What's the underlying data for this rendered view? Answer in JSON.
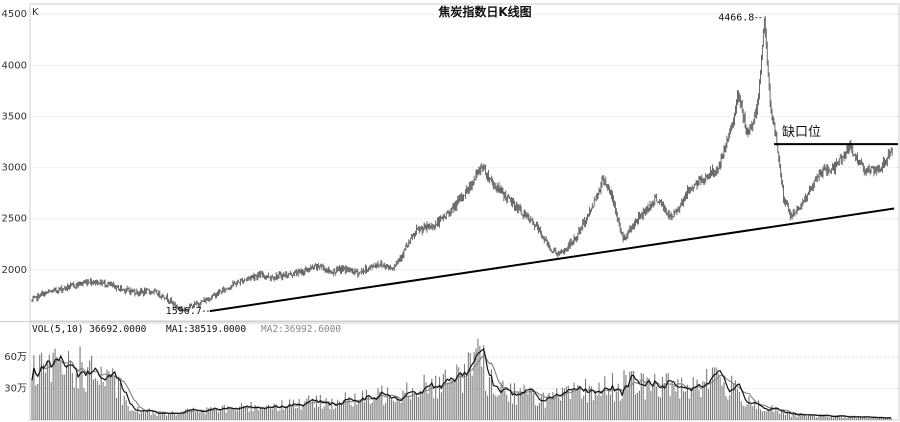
{
  "chart_data": [
    {
      "type": "candlestick",
      "title": "焦炭指数日K线图",
      "unit_label": "K",
      "ylim": [
        1500,
        4600
      ],
      "yticks": [
        "2000",
        "2500",
        "3000",
        "3500",
        "4000",
        "4500"
      ],
      "grid": true,
      "colors": {
        "price": "#555555",
        "trendline": "#000000",
        "grid": "#dddddd"
      },
      "anchors": [
        {
          "i": 0,
          "v": 1700
        },
        {
          "i": 10,
          "v": 1760
        },
        {
          "i": 25,
          "v": 1800
        },
        {
          "i": 45,
          "v": 1850
        },
        {
          "i": 60,
          "v": 1890
        },
        {
          "i": 75,
          "v": 1870
        },
        {
          "i": 90,
          "v": 1820
        },
        {
          "i": 110,
          "v": 1780
        },
        {
          "i": 125,
          "v": 1790
        },
        {
          "i": 140,
          "v": 1730
        },
        {
          "i": 150,
          "v": 1640
        },
        {
          "i": 158,
          "v": 1610
        },
        {
          "i": 165,
          "v": 1640
        },
        {
          "i": 180,
          "v": 1700
        },
        {
          "i": 195,
          "v": 1780
        },
        {
          "i": 210,
          "v": 1860
        },
        {
          "i": 230,
          "v": 1940
        },
        {
          "i": 240,
          "v": 1950
        },
        {
          "i": 248,
          "v": 1930
        },
        {
          "i": 265,
          "v": 1950
        },
        {
          "i": 280,
          "v": 1980
        },
        {
          "i": 300,
          "v": 2040
        },
        {
          "i": 310,
          "v": 1980
        },
        {
          "i": 325,
          "v": 2010
        },
        {
          "i": 340,
          "v": 1970
        },
        {
          "i": 360,
          "v": 2060
        },
        {
          "i": 375,
          "v": 2020
        },
        {
          "i": 385,
          "v": 2150
        },
        {
          "i": 400,
          "v": 2380
        },
        {
          "i": 420,
          "v": 2440
        },
        {
          "i": 440,
          "v": 2620
        },
        {
          "i": 458,
          "v": 2850
        },
        {
          "i": 468,
          "v": 3020
        },
        {
          "i": 480,
          "v": 2840
        },
        {
          "i": 495,
          "v": 2700
        },
        {
          "i": 510,
          "v": 2560
        },
        {
          "i": 525,
          "v": 2420
        },
        {
          "i": 540,
          "v": 2200
        },
        {
          "i": 550,
          "v": 2150
        },
        {
          "i": 565,
          "v": 2300
        },
        {
          "i": 580,
          "v": 2560
        },
        {
          "i": 595,
          "v": 2900
        },
        {
          "i": 603,
          "v": 2720
        },
        {
          "i": 615,
          "v": 2300
        },
        {
          "i": 630,
          "v": 2500
        },
        {
          "i": 650,
          "v": 2700
        },
        {
          "i": 665,
          "v": 2500
        },
        {
          "i": 685,
          "v": 2800
        },
        {
          "i": 700,
          "v": 2900
        },
        {
          "i": 715,
          "v": 3000
        },
        {
          "i": 725,
          "v": 3300
        },
        {
          "i": 735,
          "v": 3700
        },
        {
          "i": 745,
          "v": 3300
        },
        {
          "i": 755,
          "v": 3600
        },
        {
          "i": 762,
          "v": 4466.8
        },
        {
          "i": 768,
          "v": 3600
        },
        {
          "i": 775,
          "v": 3250
        },
        {
          "i": 782,
          "v": 2700
        },
        {
          "i": 790,
          "v": 2520
        },
        {
          "i": 805,
          "v": 2700
        },
        {
          "i": 820,
          "v": 2950
        },
        {
          "i": 835,
          "v": 3000
        },
        {
          "i": 850,
          "v": 3200
        },
        {
          "i": 865,
          "v": 3000
        },
        {
          "i": 880,
          "v": 2950
        },
        {
          "i": 895,
          "v": 3180
        }
      ],
      "annotations": {
        "peak_label": "4466.8",
        "peak_value": 4466.8,
        "low_label": "1596.7",
        "low_value": 1596.7,
        "gap_label": "缺口位",
        "gap_level": 3230
      },
      "trendline": {
        "start": {
          "i": 185,
          "v": 1596.7
        },
        "end": {
          "i": 895,
          "v": 2600
        }
      }
    },
    {
      "type": "bar",
      "legend_text": {
        "vol": "VOL(5,10) 36692.0000",
        "ma1": "MA1:38519.0000",
        "ma2": "MA2:36992.6000"
      },
      "ylim_wan": [
        0,
        80
      ],
      "yticks": [
        "60万",
        "30万"
      ],
      "volume_anchors_wan": [
        {
          "i": 0,
          "v": 42
        },
        {
          "i": 20,
          "v": 48
        },
        {
          "i": 40,
          "v": 52
        },
        {
          "i": 60,
          "v": 45
        },
        {
          "i": 75,
          "v": 40
        },
        {
          "i": 90,
          "v": 30
        },
        {
          "i": 100,
          "v": 10
        },
        {
          "i": 130,
          "v": 7
        },
        {
          "i": 180,
          "v": 9
        },
        {
          "i": 250,
          "v": 14
        },
        {
          "i": 300,
          "v": 17
        },
        {
          "i": 350,
          "v": 20
        },
        {
          "i": 380,
          "v": 28
        },
        {
          "i": 410,
          "v": 34
        },
        {
          "i": 440,
          "v": 36
        },
        {
          "i": 465,
          "v": 62
        },
        {
          "i": 475,
          "v": 38
        },
        {
          "i": 500,
          "v": 26
        },
        {
          "i": 540,
          "v": 20
        },
        {
          "i": 580,
          "v": 28
        },
        {
          "i": 620,
          "v": 34
        },
        {
          "i": 660,
          "v": 32
        },
        {
          "i": 690,
          "v": 34
        },
        {
          "i": 710,
          "v": 40
        },
        {
          "i": 730,
          "v": 28
        },
        {
          "i": 760,
          "v": 12
        },
        {
          "i": 790,
          "v": 5
        },
        {
          "i": 850,
          "v": 3
        },
        {
          "i": 895,
          "v": 2
        }
      ],
      "colors": {
        "bars": "#777777",
        "ma1": "#111111",
        "ma2": "#888888"
      }
    }
  ]
}
